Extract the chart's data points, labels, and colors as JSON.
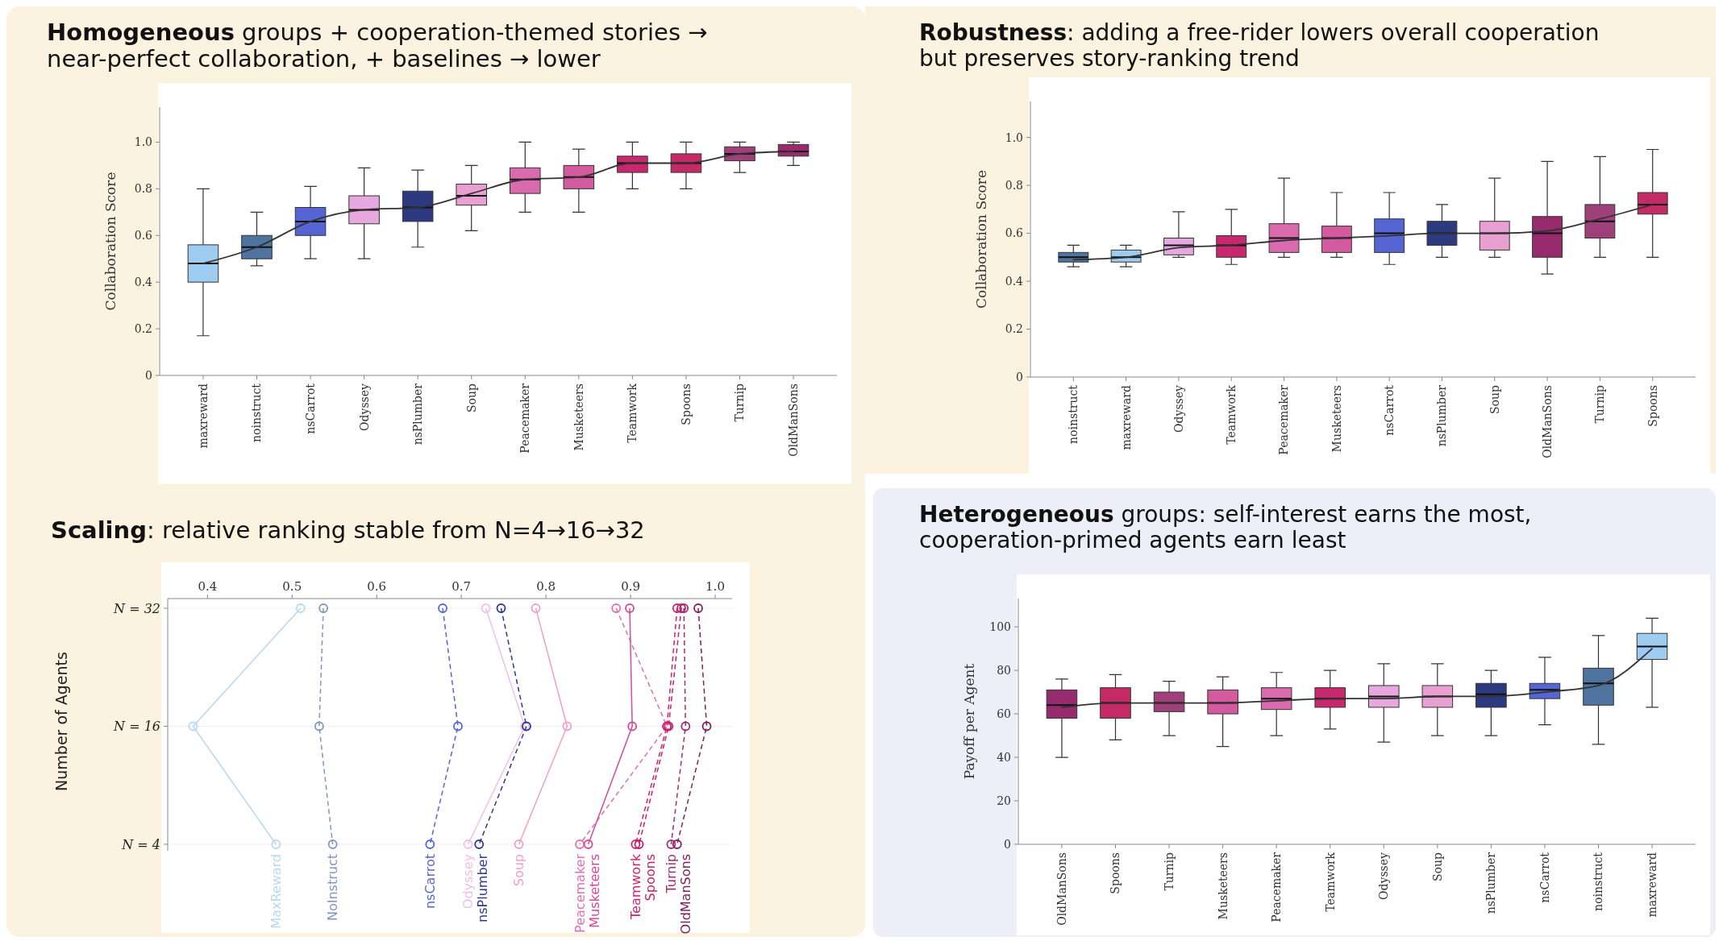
{
  "chart_data": [
    {
      "type": "box",
      "title": "Homogeneous groups + cooperation-themed stories → near-perfect collaboration, + baselines → lower",
      "ylabel": "Collaboration Score",
      "categories": [
        "maxreward",
        "noinstruct",
        "nsCarrot",
        "Odyssey",
        "nsPlumber",
        "Soup",
        "Peacemaker",
        "Musketeers",
        "Teamwork",
        "Spoons",
        "Turnip",
        "OldManSons"
      ],
      "colors": [
        "#9ecbf0",
        "#4f74a0",
        "#5566d4",
        "#e6a8de",
        "#2d3a80",
        "#e8a0d0",
        "#d96aad",
        "#d45aa0",
        "#c8286e",
        "#c42a65",
        "#a0407a",
        "#982a6e"
      ],
      "boxes": [
        {
          "low": 0.17,
          "q1": 0.4,
          "median": 0.48,
          "q3": 0.56,
          "high": 0.8
        },
        {
          "low": 0.47,
          "q1": 0.5,
          "median": 0.55,
          "q3": 0.6,
          "high": 0.7
        },
        {
          "low": 0.5,
          "q1": 0.6,
          "median": 0.66,
          "q3": 0.72,
          "high": 0.81
        },
        {
          "low": 0.5,
          "q1": 0.65,
          "median": 0.71,
          "q3": 0.77,
          "high": 0.89
        },
        {
          "low": 0.55,
          "q1": 0.66,
          "median": 0.72,
          "q3": 0.79,
          "high": 0.88
        },
        {
          "low": 0.62,
          "q1": 0.73,
          "median": 0.77,
          "q3": 0.82,
          "high": 0.9
        },
        {
          "low": 0.7,
          "q1": 0.78,
          "median": 0.84,
          "q3": 0.89,
          "high": 1.0
        },
        {
          "low": 0.7,
          "q1": 0.8,
          "median": 0.85,
          "q3": 0.9,
          "high": 0.97
        },
        {
          "low": 0.8,
          "q1": 0.87,
          "median": 0.91,
          "q3": 0.94,
          "high": 1.0
        },
        {
          "low": 0.8,
          "q1": 0.87,
          "median": 0.91,
          "q3": 0.95,
          "high": 1.0
        },
        {
          "low": 0.87,
          "q1": 0.92,
          "median": 0.95,
          "q3": 0.98,
          "high": 1.0
        },
        {
          "low": 0.9,
          "q1": 0.94,
          "median": 0.96,
          "q3": 0.99,
          "high": 1.0
        }
      ],
      "series": [
        {
          "type": "line",
          "color": "#333333",
          "values": [
            0.48,
            0.55,
            0.66,
            0.71,
            0.72,
            0.78,
            0.84,
            0.85,
            0.91,
            0.91,
            0.95,
            0.96
          ]
        }
      ],
      "ylim": [
        0,
        1.15
      ],
      "yticks": [
        0.0,
        {
          "value": 0.2,
          "label": "0.2"
        },
        {
          "value": 0.4,
          "label": "0.4"
        },
        {
          "value": 0.6,
          "label": "0.6"
        },
        {
          "value": 0.8,
          "label": "0.8"
        },
        {
          "value": 1,
          "label": "1.0"
        }
      ]
    },
    {
      "type": "box",
      "title": "Robustness: adding a free-rider lowers overall cooperation but preserves story-ranking trend",
      "ylabel": "Collaboration Score",
      "categories": [
        "noinstruct",
        "maxreward",
        "Odyssey",
        "Teamwork",
        "Peacemaker",
        "Musketeers",
        "nsCarrot",
        "nsPlumber",
        "Soup",
        "OldManSons",
        "Turnip",
        "Spoons"
      ],
      "colors": [
        "#4f74a0",
        "#9ecbf0",
        "#e6a8de",
        "#c8286e",
        "#d96aad",
        "#d45aa0",
        "#5566d4",
        "#2d3a80",
        "#e8a0d0",
        "#982a6e",
        "#a0407a",
        "#c42a65"
      ],
      "boxes": [
        {
          "low": 0.46,
          "q1": 0.48,
          "median": 0.5,
          "q3": 0.52,
          "high": 0.55
        },
        {
          "low": 0.46,
          "q1": 0.48,
          "median": 0.5,
          "q3": 0.53,
          "high": 0.55
        },
        {
          "low": 0.5,
          "q1": 0.51,
          "median": 0.55,
          "q3": 0.58,
          "high": 0.69
        },
        {
          "low": 0.47,
          "q1": 0.5,
          "median": 0.55,
          "q3": 0.59,
          "high": 0.7
        },
        {
          "low": 0.5,
          "q1": 0.52,
          "median": 0.58,
          "q3": 0.64,
          "high": 0.83
        },
        {
          "low": 0.5,
          "q1": 0.52,
          "median": 0.58,
          "q3": 0.63,
          "high": 0.77
        },
        {
          "low": 0.47,
          "q1": 0.52,
          "median": 0.6,
          "q3": 0.66,
          "high": 0.77
        },
        {
          "low": 0.5,
          "q1": 0.55,
          "median": 0.6,
          "q3": 0.65,
          "high": 0.72
        },
        {
          "low": 0.5,
          "q1": 0.53,
          "median": 0.6,
          "q3": 0.65,
          "high": 0.83
        },
        {
          "low": 0.43,
          "q1": 0.5,
          "median": 0.6,
          "q3": 0.67,
          "high": 0.9
        },
        {
          "low": 0.5,
          "q1": 0.58,
          "median": 0.65,
          "q3": 0.72,
          "high": 0.92
        },
        {
          "low": 0.5,
          "q1": 0.68,
          "median": 0.72,
          "q3": 0.77,
          "high": 0.95
        }
      ],
      "series": [
        {
          "type": "line",
          "color": "#333333",
          "values": [
            0.49,
            0.5,
            0.54,
            0.55,
            0.57,
            0.58,
            0.59,
            0.6,
            0.6,
            0.61,
            0.66,
            0.72
          ]
        }
      ],
      "ylim": [
        0,
        1.15
      ],
      "yticks": [
        0.0,
        {
          "value": 0.2,
          "label": "0.2"
        },
        {
          "value": 0.4,
          "label": "0.4"
        },
        {
          "value": 0.6,
          "label": "0.6"
        },
        {
          "value": 0.8,
          "label": "0.8"
        },
        {
          "value": 1,
          "label": "1.0"
        }
      ]
    },
    {
      "type": "line",
      "orientation": "horizontal",
      "title": "Scaling: relative ranking stable from N=4→16→32",
      "ylabel": "Number of Agents",
      "categories": [
        "N = 32",
        "N = 16",
        "N = 4"
      ],
      "xlim": [
        0.353,
        1.02
      ],
      "xticks": [
        0.4,
        0.5,
        0.6,
        0.7,
        0.8,
        0.9,
        {
          "value": 1,
          "label": "1.0"
        }
      ],
      "grid": "y",
      "marker": "circle",
      "legend": false,
      "series": [
        {
          "name": "MaxReward",
          "color": "#b8d8f0",
          "line_style": "solid",
          "values": [
            0.51,
            0.383,
            0.481
          ]
        },
        {
          "name": "NoInstruct",
          "color": "#8098c0",
          "line_style": "dashed",
          "values": [
            0.537,
            0.532,
            0.548
          ]
        },
        {
          "name": "nsCarrot",
          "color": "#5566d4",
          "line_style": "dashed",
          "values": [
            0.678,
            0.696,
            0.663
          ]
        },
        {
          "name": "Odyssey",
          "color": "#f0c0e8",
          "line_style": "solid",
          "values": [
            0.729,
            0.775,
            0.708
          ]
        },
        {
          "name": "nsPlumber",
          "color": "#2d3a90",
          "line_style": "dashed",
          "values": [
            0.747,
            0.777,
            0.721
          ]
        },
        {
          "name": "Soup",
          "color": "#f0a0c8",
          "line_style": "solid",
          "values": [
            0.788,
            0.825,
            0.768
          ]
        },
        {
          "name": "Peacemaker",
          "color": "#e070b0",
          "line_style": "dashed",
          "values": [
            0.883,
            0.943,
            0.84
          ]
        },
        {
          "name": "Musketeers",
          "color": "#d84a98",
          "line_style": "solid",
          "values": [
            0.899,
            0.902,
            0.85
          ]
        },
        {
          "name": "Teamwork",
          "color": "#d02070",
          "line_style": "dashed",
          "values": [
            0.955,
            0.943,
            0.906
          ]
        },
        {
          "name": "Spoons",
          "color": "#c8206a",
          "line_style": "dashed",
          "values": [
            0.96,
            0.945,
            0.91
          ]
        },
        {
          "name": "Turnip",
          "color": "#a03070",
          "line_style": "dashed",
          "values": [
            0.963,
            0.965,
            0.948
          ]
        },
        {
          "name": "OldManSons",
          "color": "#80205a",
          "line_style": "dashed",
          "values": [
            0.98,
            0.99,
            0.955
          ]
        }
      ]
    },
    {
      "type": "box",
      "title": "Heterogeneous groups: self-interest earns the most, cooperation-primed agents earn least",
      "ylabel": "Payoff per Agent",
      "categories": [
        "OldManSons",
        "Spoons",
        "Turnip",
        "Musketeers",
        "Peacemaker",
        "Teamwork",
        "Odyssey",
        "Soup",
        "nsPlumber",
        "nsCarrot",
        "noinstruct",
        "maxreward"
      ],
      "colors": [
        "#982a6e",
        "#c42a65",
        "#a0407a",
        "#d45aa0",
        "#d96aad",
        "#c8286e",
        "#e6a8de",
        "#e8a0d0",
        "#2d3a80",
        "#5566d4",
        "#4f74a0",
        "#9ecbf0"
      ],
      "boxes": [
        {
          "low": 40,
          "q1": 58,
          "median": 64,
          "q3": 71,
          "high": 76
        },
        {
          "low": 48,
          "q1": 58,
          "median": 65,
          "q3": 72,
          "high": 78
        },
        {
          "low": 50,
          "q1": 61,
          "median": 65,
          "q3": 70,
          "high": 75
        },
        {
          "low": 45,
          "q1": 60,
          "median": 65,
          "q3": 71,
          "high": 77
        },
        {
          "low": 50,
          "q1": 62,
          "median": 67,
          "q3": 72,
          "high": 79
        },
        {
          "low": 53,
          "q1": 63,
          "median": 67,
          "q3": 72,
          "high": 80
        },
        {
          "low": 47,
          "q1": 63,
          "median": 68,
          "q3": 73,
          "high": 83
        },
        {
          "low": 50,
          "q1": 63,
          "median": 68,
          "q3": 73,
          "high": 83
        },
        {
          "low": 50,
          "q1": 63,
          "median": 69,
          "q3": 74,
          "high": 80
        },
        {
          "low": 55,
          "q1": 67,
          "median": 71,
          "q3": 74,
          "high": 86
        },
        {
          "low": 46,
          "q1": 64,
          "median": 74,
          "q3": 81,
          "high": 96
        },
        {
          "low": 63,
          "q1": 85,
          "median": 91,
          "q3": 97,
          "high": 104
        }
      ],
      "series": [
        {
          "type": "line",
          "color": "#333333",
          "values": [
            63,
            65,
            65,
            65,
            66,
            67,
            67,
            68,
            68,
            70,
            73,
            90
          ]
        }
      ],
      "ylim": [
        0,
        113
      ],
      "yticks": [
        0,
        20,
        40,
        60,
        80,
        100
      ]
    }
  ]
}
